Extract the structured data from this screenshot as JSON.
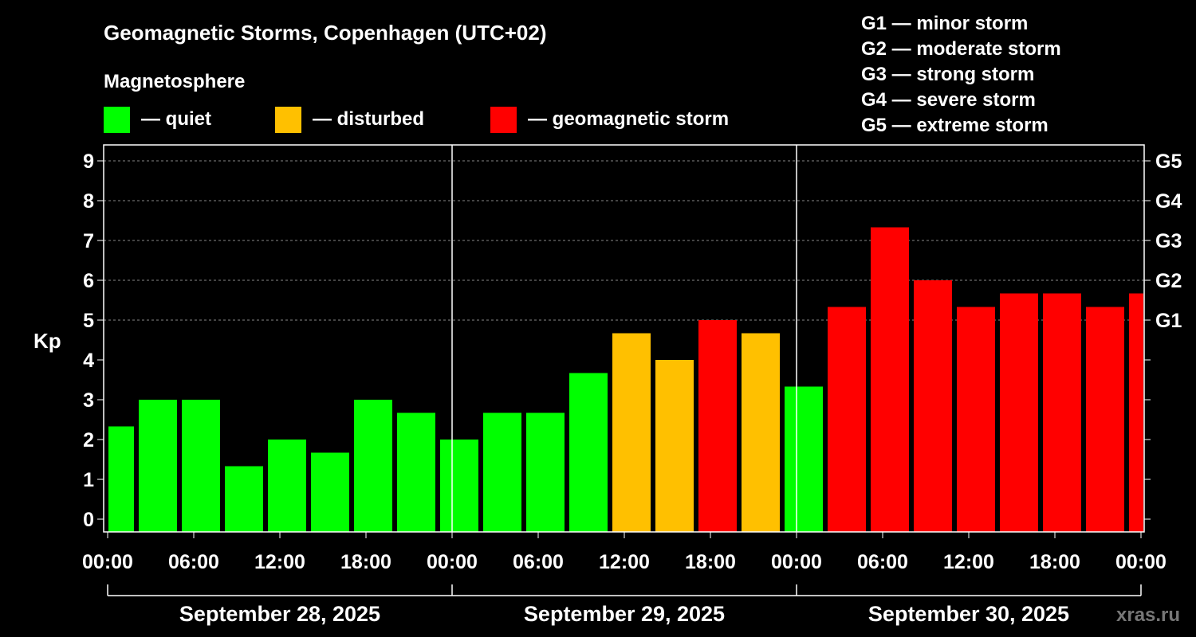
{
  "chart_data": {
    "type": "bar",
    "title": "Geomagnetic Storms, Copenhagen (UTC+02)",
    "legend_title": "Magnetosphere",
    "legend": [
      {
        "label": "— quiet",
        "color": "#00ff00"
      },
      {
        "label": "— disturbed",
        "color": "#ffc000"
      },
      {
        "label": "— geomagnetic storm",
        "color": "#ff0000"
      }
    ],
    "scale_legend": [
      "G1 — minor storm",
      "G2 — moderate storm",
      "G3 — strong storm",
      "G4 — severe storm",
      "G5 — extreme storm"
    ],
    "ylabel": "Kp",
    "ylim": [
      0,
      9
    ],
    "yticks": [
      "0",
      "1",
      "2",
      "3",
      "4",
      "5",
      "6",
      "7",
      "8",
      "9"
    ],
    "right_ticks": [
      {
        "kp": 5,
        "label": "G1"
      },
      {
        "kp": 6,
        "label": "G2"
      },
      {
        "kp": 7,
        "label": "G3"
      },
      {
        "kp": 8,
        "label": "G4"
      },
      {
        "kp": 9,
        "label": "G5"
      }
    ],
    "xticks": [
      "00:00",
      "06:00",
      "12:00",
      "18:00",
      "00:00",
      "06:00",
      "12:00",
      "18:00",
      "00:00",
      "06:00",
      "12:00",
      "18:00",
      "00:00"
    ],
    "days": [
      "September 28, 2025",
      "September 29, 2025",
      "September 30, 2025"
    ],
    "interval_hours": 3,
    "values": [
      2.33,
      3,
      3,
      1.33,
      2,
      1.67,
      3,
      2.67,
      2,
      2.67,
      2.67,
      3.67,
      4.67,
      4,
      5,
      4.67,
      3.33,
      5.33,
      7.33,
      6,
      5.33,
      5.67,
      5.67,
      5.33,
      5.67
    ],
    "categories": [
      "quiet",
      "quiet",
      "quiet",
      "quiet",
      "quiet",
      "quiet",
      "quiet",
      "quiet",
      "quiet",
      "quiet",
      "quiet",
      "quiet",
      "disturbed",
      "disturbed",
      "storm",
      "disturbed",
      "quiet",
      "storm",
      "storm",
      "storm",
      "storm",
      "storm",
      "storm",
      "storm",
      "storm"
    ],
    "colors": {
      "quiet": "#00ff00",
      "disturbed": "#ffc000",
      "storm": "#ff0000"
    }
  },
  "watermark": "xras.ru"
}
